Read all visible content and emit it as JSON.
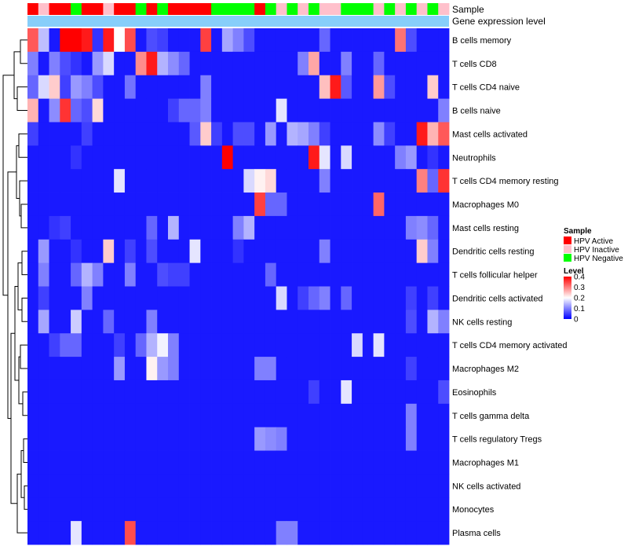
{
  "chart_data": {
    "type": "heatmap",
    "annotations": [
      {
        "label": "Sample"
      },
      {
        "label": "Gene expression level"
      }
    ],
    "sample_groups": [
      "A",
      "I",
      "A",
      "A",
      "N",
      "A",
      "A",
      "I",
      "A",
      "A",
      "N",
      "A",
      "N",
      "A",
      "A",
      "A",
      "A",
      "N",
      "N",
      "N",
      "N",
      "A",
      "N",
      "I",
      "N",
      "I",
      "N",
      "I",
      "I",
      "N",
      "N",
      "N",
      "I",
      "N",
      "I",
      "N",
      "I",
      "N",
      "I"
    ],
    "legend_sample": {
      "title": "Sample",
      "entries": [
        {
          "key": "A",
          "label": "HPV Active",
          "color": "#ff0000"
        },
        {
          "key": "I",
          "label": "HPV Inactive",
          "color": "#ffc0cb"
        },
        {
          "key": "N",
          "label": "HPV Negative",
          "color": "#00ff00"
        }
      ]
    },
    "legend_level": {
      "title": "Level",
      "ticks": [
        "0.4",
        "0.3",
        "0.2",
        "0.1",
        "0"
      ],
      "range": [
        0,
        0.4
      ]
    },
    "color_scale": {
      "low": "#0000ff",
      "mid": "#ffffff",
      "high": "#ff0000",
      "min": 0,
      "mid_value": 0.2,
      "max": 0.4
    },
    "expression_bar_color": "#87cefa",
    "rows": [
      "B cells memory",
      "T cells CD8",
      "T cells CD4 naive",
      "B cells naive",
      "Mast cells activated",
      "Neutrophils",
      "T cells CD4 memory resting",
      "Macrophages M0",
      "Mast cells resting",
      "Dendritic cells resting",
      "T cells follicular helper",
      "Dendritic cells activated",
      "NK cells resting",
      "T cells CD4 memory activated",
      "Macrophages M2",
      "Eosinophils",
      "T cells gamma delta",
      "T cells regulatory  Tregs",
      "Macrophages M1",
      "NK cells activated",
      "Monocytes",
      "Plasma cells"
    ],
    "values": [
      [
        0.33,
        0.15,
        0.02,
        0.4,
        0.4,
        0.38,
        0.04,
        0.38,
        0.2,
        0.34,
        0.02,
        0.06,
        0.05,
        0.02,
        0.02,
        0.02,
        0.35,
        0.02,
        0.13,
        0.1,
        0.06,
        0.02,
        0.02,
        0.02,
        0.02,
        0.02,
        0.02,
        0.08,
        0.02,
        0.02,
        0.02,
        0.02,
        0.02,
        0.02,
        0.31,
        0.06,
        0.02,
        0.02,
        0.02
      ],
      [
        0.1,
        0.02,
        0.1,
        0.06,
        0.04,
        0.02,
        0.12,
        0.17,
        0.02,
        0.02,
        0.29,
        0.38,
        0.14,
        0.11,
        0.08,
        0.02,
        0.02,
        0.02,
        0.02,
        0.02,
        0.02,
        0.02,
        0.02,
        0.02,
        0.02,
        0.1,
        0.27,
        0.02,
        0.02,
        0.1,
        0.02,
        0.02,
        0.08,
        0.02,
        0.02,
        0.02,
        0.02,
        0.02,
        0.02
      ],
      [
        0.08,
        0.17,
        0.24,
        0.05,
        0.12,
        0.1,
        0.06,
        0.02,
        0.02,
        0.09,
        0.02,
        0.02,
        0.02,
        0.02,
        0.02,
        0.02,
        0.1,
        0.02,
        0.02,
        0.02,
        0.02,
        0.02,
        0.02,
        0.02,
        0.02,
        0.02,
        0.02,
        0.25,
        0.38,
        0.07,
        0.02,
        0.02,
        0.28,
        0.06,
        0.02,
        0.02,
        0.02,
        0.24,
        0.02
      ],
      [
        0.26,
        0.02,
        0.11,
        0.36,
        0.08,
        0.06,
        0.23,
        0.02,
        0.02,
        0.02,
        0.02,
        0.02,
        0.02,
        0.05,
        0.08,
        0.08,
        0.1,
        0.02,
        0.02,
        0.02,
        0.02,
        0.02,
        0.02,
        0.18,
        0.02,
        0.02,
        0.02,
        0.02,
        0.02,
        0.02,
        0.02,
        0.02,
        0.02,
        0.02,
        0.02,
        0.02,
        0.02,
        0.02,
        0.1
      ],
      [
        0.05,
        0.02,
        0.02,
        0.02,
        0.02,
        0.05,
        0.02,
        0.02,
        0.02,
        0.02,
        0.02,
        0.02,
        0.02,
        0.02,
        0.02,
        0.07,
        0.24,
        0.05,
        0.02,
        0.06,
        0.06,
        0.02,
        0.12,
        0.02,
        0.14,
        0.13,
        0.1,
        0.05,
        0.02,
        0.02,
        0.02,
        0.02,
        0.11,
        0.05,
        0.02,
        0.02,
        0.38,
        0.26,
        0.33
      ],
      [
        0.02,
        0.02,
        0.02,
        0.02,
        0.04,
        0.02,
        0.02,
        0.02,
        0.02,
        0.02,
        0.02,
        0.02,
        0.02,
        0.02,
        0.02,
        0.02,
        0.02,
        0.02,
        0.4,
        0.02,
        0.02,
        0.02,
        0.02,
        0.02,
        0.02,
        0.02,
        0.38,
        0.18,
        0.02,
        0.17,
        0.02,
        0.02,
        0.02,
        0.02,
        0.1,
        0.12,
        0.02,
        0.04,
        0.02
      ],
      [
        0.02,
        0.02,
        0.02,
        0.02,
        0.02,
        0.02,
        0.02,
        0.02,
        0.18,
        0.02,
        0.02,
        0.02,
        0.02,
        0.02,
        0.02,
        0.02,
        0.02,
        0.02,
        0.02,
        0.02,
        0.17,
        0.21,
        0.23,
        0.02,
        0.02,
        0.02,
        0.02,
        0.1,
        0.02,
        0.02,
        0.02,
        0.02,
        0.02,
        0.02,
        0.02,
        0.02,
        0.3,
        0.08,
        0.36
      ],
      [
        0.02,
        0.02,
        0.02,
        0.02,
        0.02,
        0.02,
        0.02,
        0.02,
        0.02,
        0.02,
        0.02,
        0.02,
        0.02,
        0.02,
        0.02,
        0.02,
        0.02,
        0.02,
        0.02,
        0.02,
        0.02,
        0.35,
        0.08,
        0.08,
        0.02,
        0.02,
        0.02,
        0.02,
        0.02,
        0.02,
        0.02,
        0.02,
        0.32,
        0.02,
        0.02,
        0.02,
        0.02,
        0.02,
        0.02
      ],
      [
        0.02,
        0.02,
        0.04,
        0.05,
        0.02,
        0.02,
        0.02,
        0.02,
        0.02,
        0.02,
        0.02,
        0.08,
        0.02,
        0.14,
        0.02,
        0.02,
        0.02,
        0.02,
        0.02,
        0.1,
        0.14,
        0.02,
        0.02,
        0.02,
        0.02,
        0.02,
        0.02,
        0.02,
        0.02,
        0.02,
        0.02,
        0.02,
        0.02,
        0.02,
        0.02,
        0.1,
        0.11,
        0.08,
        0.02
      ],
      [
        0.02,
        0.12,
        0.02,
        0.02,
        0.04,
        0.02,
        0.02,
        0.24,
        0.02,
        0.05,
        0.02,
        0.06,
        0.02,
        0.02,
        0.02,
        0.18,
        0.02,
        0.02,
        0.02,
        0.04,
        0.02,
        0.02,
        0.02,
        0.02,
        0.02,
        0.02,
        0.02,
        0.1,
        0.02,
        0.02,
        0.02,
        0.02,
        0.02,
        0.02,
        0.02,
        0.02,
        0.24,
        0.1,
        0.02
      ],
      [
        0.02,
        0.1,
        0.02,
        0.02,
        0.08,
        0.14,
        0.1,
        0.02,
        0.02,
        0.1,
        0.02,
        0.02,
        0.06,
        0.05,
        0.05,
        0.02,
        0.02,
        0.02,
        0.02,
        0.02,
        0.02,
        0.02,
        0.08,
        0.02,
        0.02,
        0.02,
        0.02,
        0.02,
        0.02,
        0.02,
        0.02,
        0.02,
        0.02,
        0.02,
        0.02,
        0.02,
        0.02,
        0.02,
        0.02
      ],
      [
        0.02,
        0.05,
        0.02,
        0.02,
        0.02,
        0.1,
        0.02,
        0.02,
        0.02,
        0.02,
        0.02,
        0.02,
        0.02,
        0.02,
        0.02,
        0.02,
        0.02,
        0.02,
        0.02,
        0.02,
        0.02,
        0.02,
        0.02,
        0.17,
        0.02,
        0.05,
        0.08,
        0.1,
        0.02,
        0.08,
        0.02,
        0.02,
        0.02,
        0.02,
        0.02,
        0.05,
        0.02,
        0.05,
        0.02
      ],
      [
        0.02,
        0.13,
        0.02,
        0.02,
        0.16,
        0.02,
        0.02,
        0.08,
        0.02,
        0.02,
        0.02,
        0.1,
        0.02,
        0.02,
        0.02,
        0.02,
        0.02,
        0.02,
        0.02,
        0.02,
        0.02,
        0.02,
        0.02,
        0.02,
        0.02,
        0.02,
        0.02,
        0.02,
        0.02,
        0.02,
        0.02,
        0.02,
        0.02,
        0.02,
        0.02,
        0.06,
        0.02,
        0.14,
        0.1
      ],
      [
        0.02,
        0.02,
        0.05,
        0.08,
        0.08,
        0.02,
        0.02,
        0.02,
        0.05,
        0.02,
        0.08,
        0.14,
        0.19,
        0.1,
        0.02,
        0.02,
        0.02,
        0.02,
        0.02,
        0.02,
        0.02,
        0.02,
        0.02,
        0.02,
        0.02,
        0.02,
        0.02,
        0.02,
        0.02,
        0.02,
        0.17,
        0.02,
        0.18,
        0.02,
        0.02,
        0.02,
        0.02,
        0.02,
        0.02
      ],
      [
        0.02,
        0.02,
        0.02,
        0.02,
        0.02,
        0.02,
        0.02,
        0.02,
        0.12,
        0.02,
        0.02,
        0.21,
        0.12,
        0.1,
        0.02,
        0.02,
        0.02,
        0.02,
        0.02,
        0.02,
        0.02,
        0.1,
        0.1,
        0.02,
        0.02,
        0.02,
        0.02,
        0.02,
        0.02,
        0.02,
        0.02,
        0.02,
        0.02,
        0.02,
        0.02,
        0.05,
        0.02,
        0.02,
        0.02
      ],
      [
        0.02,
        0.02,
        0.02,
        0.02,
        0.02,
        0.02,
        0.02,
        0.02,
        0.02,
        0.02,
        0.02,
        0.02,
        0.02,
        0.02,
        0.02,
        0.02,
        0.02,
        0.02,
        0.02,
        0.02,
        0.02,
        0.02,
        0.02,
        0.02,
        0.02,
        0.02,
        0.05,
        0.02,
        0.02,
        0.18,
        0.02,
        0.02,
        0.02,
        0.02,
        0.02,
        0.02,
        0.02,
        0.02,
        0.06
      ],
      [
        0.02,
        0.02,
        0.02,
        0.02,
        0.02,
        0.02,
        0.02,
        0.02,
        0.02,
        0.02,
        0.02,
        0.02,
        0.02,
        0.02,
        0.02,
        0.02,
        0.02,
        0.02,
        0.02,
        0.02,
        0.02,
        0.02,
        0.02,
        0.02,
        0.02,
        0.02,
        0.02,
        0.02,
        0.02,
        0.02,
        0.02,
        0.02,
        0.02,
        0.02,
        0.02,
        0.1,
        0.02,
        0.02,
        0.02
      ],
      [
        0.02,
        0.02,
        0.02,
        0.02,
        0.02,
        0.02,
        0.02,
        0.02,
        0.02,
        0.02,
        0.02,
        0.02,
        0.02,
        0.02,
        0.02,
        0.02,
        0.02,
        0.02,
        0.02,
        0.02,
        0.02,
        0.12,
        0.11,
        0.1,
        0.02,
        0.02,
        0.02,
        0.02,
        0.02,
        0.02,
        0.02,
        0.02,
        0.02,
        0.02,
        0.02,
        0.1,
        0.02,
        0.02,
        0.02
      ],
      [
        0.02,
        0.02,
        0.02,
        0.02,
        0.02,
        0.02,
        0.02,
        0.02,
        0.02,
        0.02,
        0.02,
        0.02,
        0.02,
        0.02,
        0.02,
        0.02,
        0.02,
        0.02,
        0.02,
        0.02,
        0.02,
        0.02,
        0.02,
        0.02,
        0.02,
        0.02,
        0.02,
        0.02,
        0.02,
        0.02,
        0.02,
        0.02,
        0.02,
        0.02,
        0.02,
        0.02,
        0.02,
        0.02,
        0.02
      ],
      [
        0.02,
        0.02,
        0.02,
        0.02,
        0.02,
        0.02,
        0.02,
        0.02,
        0.02,
        0.02,
        0.02,
        0.02,
        0.02,
        0.02,
        0.02,
        0.02,
        0.02,
        0.02,
        0.02,
        0.02,
        0.02,
        0.02,
        0.02,
        0.02,
        0.02,
        0.02,
        0.02,
        0.02,
        0.02,
        0.02,
        0.02,
        0.02,
        0.02,
        0.02,
        0.02,
        0.02,
        0.02,
        0.02,
        0.02
      ],
      [
        0.02,
        0.02,
        0.02,
        0.02,
        0.02,
        0.02,
        0.02,
        0.02,
        0.02,
        0.02,
        0.02,
        0.02,
        0.02,
        0.02,
        0.02,
        0.02,
        0.02,
        0.02,
        0.02,
        0.02,
        0.02,
        0.02,
        0.02,
        0.02,
        0.02,
        0.02,
        0.02,
        0.02,
        0.02,
        0.02,
        0.02,
        0.02,
        0.02,
        0.02,
        0.02,
        0.02,
        0.02,
        0.02,
        0.02
      ],
      [
        0.02,
        0.02,
        0.02,
        0.02,
        0.18,
        0.02,
        0.02,
        0.02,
        0.02,
        0.34,
        0.02,
        0.02,
        0.02,
        0.02,
        0.02,
        0.02,
        0.02,
        0.02,
        0.02,
        0.02,
        0.02,
        0.02,
        0.02,
        0.1,
        0.1,
        0.02,
        0.02,
        0.02,
        0.02,
        0.02,
        0.02,
        0.02,
        0.02,
        0.02,
        0.02,
        0.02,
        0.02,
        0.02,
        0.02
      ]
    ]
  }
}
